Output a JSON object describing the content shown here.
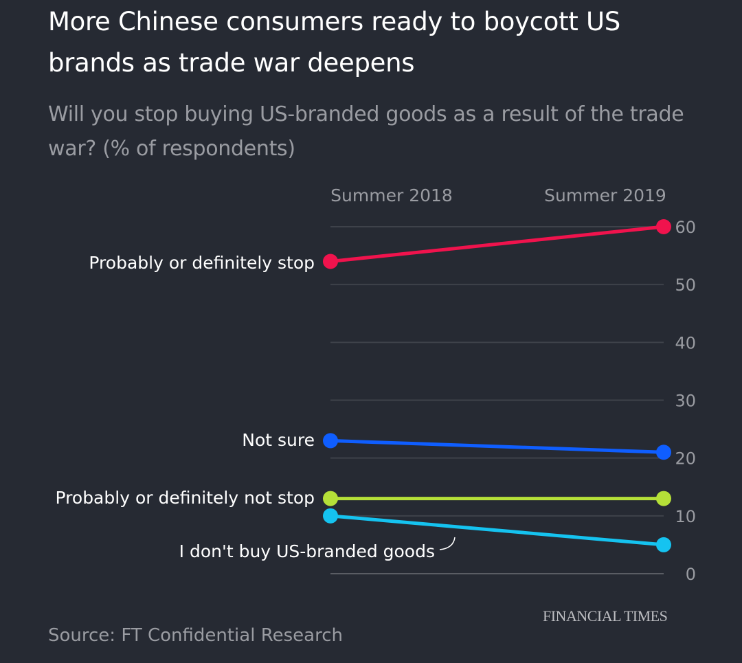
{
  "header": {
    "title": "More Chinese consumers ready to boycott US brands as trade war deepens",
    "subtitle": "Will you stop buying US-branded goods as a result of the trade war? (% of respondents)"
  },
  "footer": {
    "source": "Source: FT Confidential Research",
    "brand": "FINANCIAL TIMES"
  },
  "chart_data": {
    "type": "line",
    "title": "More Chinese consumers ready to boycott US brands as trade war deepens",
    "subtitle": "Will you stop buying US-branded goods as a result of the trade war? (% of respondents)",
    "categories": [
      "Summer 2018",
      "Summer 2019"
    ],
    "ylim": [
      0,
      60
    ],
    "yticks": [
      0,
      10,
      20,
      30,
      40,
      50,
      60
    ],
    "grid": true,
    "series": [
      {
        "name": "Probably or definitely stop",
        "values": [
          54,
          60
        ],
        "color": "#f0134d"
      },
      {
        "name": "Not sure",
        "values": [
          23,
          21
        ],
        "color": "#0f5eff"
      },
      {
        "name": "Probably or definitely not stop",
        "values": [
          13,
          13
        ],
        "color": "#b5e038"
      },
      {
        "name": "I don't buy US-branded goods",
        "values": [
          10,
          5
        ],
        "color": "#15c3f0"
      }
    ]
  }
}
